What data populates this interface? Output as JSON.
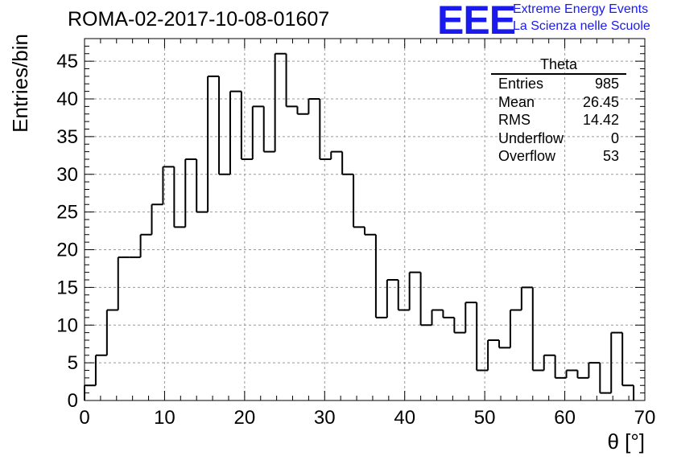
{
  "title": "ROMA-02-2017-10-08-01607",
  "logo": {
    "mark": "EEE",
    "line1": "Extreme Energy Events",
    "line2": "La Scienza nelle Scuole"
  },
  "stats": {
    "name": "Theta",
    "rows": [
      {
        "label": "Entries",
        "value": "985"
      },
      {
        "label": "Mean",
        "value": "26.45"
      },
      {
        "label": "RMS",
        "value": "14.42"
      },
      {
        "label": "Underflow",
        "value": "0"
      },
      {
        "label": "Overflow",
        "value": "53"
      }
    ]
  },
  "chart_data": {
    "type": "bar",
    "histogram": true,
    "xlabel": "θ [°]",
    "ylabel": "Entries/bin",
    "xlim": [
      0,
      70
    ],
    "ylim": [
      0,
      48
    ],
    "grid": true,
    "x_ticks": [
      0,
      10,
      20,
      30,
      40,
      50,
      60,
      70
    ],
    "y_ticks": [
      0,
      5,
      10,
      15,
      20,
      25,
      30,
      35,
      40,
      45
    ],
    "bin_width": 1.4,
    "bin_edges_start": 0,
    "values": [
      2,
      6,
      12,
      19,
      19,
      22,
      26,
      31,
      23,
      32,
      25,
      43,
      30,
      41,
      32,
      39,
      33,
      46,
      39,
      38,
      40,
      32,
      33,
      30,
      23,
      22,
      11,
      16,
      12,
      17,
      10,
      12,
      11,
      9,
      13,
      4,
      8,
      7,
      12,
      15,
      4,
      6,
      3,
      4,
      3,
      5,
      1,
      9,
      2
    ]
  }
}
